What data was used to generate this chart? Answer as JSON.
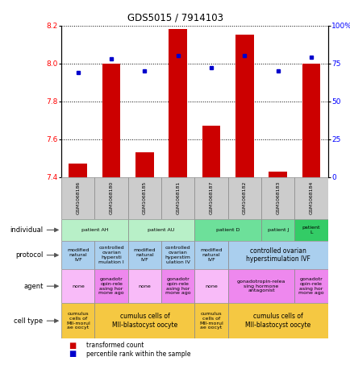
{
  "title": "GDS5015 / 7914103",
  "samples": [
    "GSM1068186",
    "GSM1068180",
    "GSM1068185",
    "GSM1068181",
    "GSM1068187",
    "GSM1068182",
    "GSM1068183",
    "GSM1068184"
  ],
  "bar_values": [
    7.47,
    8.0,
    7.53,
    8.18,
    7.67,
    8.15,
    7.43,
    8.0
  ],
  "dot_values": [
    69,
    78,
    70,
    80,
    72,
    80,
    70,
    79
  ],
  "ylim_left": [
    7.4,
    8.2
  ],
  "ylim_right": [
    0,
    100
  ],
  "yticks_left": [
    7.4,
    7.6,
    7.8,
    8.0,
    8.2
  ],
  "yticks_right": [
    0,
    25,
    50,
    75,
    100
  ],
  "ytick_labels_right": [
    "0",
    "25",
    "50",
    "75",
    "100%"
  ],
  "bar_color": "#cc0000",
  "dot_color": "#0000cc",
  "sample_box_color": "#cccccc",
  "individual_row": {
    "label": "individual",
    "groups": [
      {
        "text": "patient AH",
        "span": [
          0,
          2
        ],
        "color": "#b8f0c8"
      },
      {
        "text": "patient AU",
        "span": [
          2,
          4
        ],
        "color": "#b8f0c8"
      },
      {
        "text": "patient D",
        "span": [
          4,
          6
        ],
        "color": "#6de09a"
      },
      {
        "text": "patient J",
        "span": [
          6,
          7
        ],
        "color": "#6de09a"
      },
      {
        "text": "patient\nL",
        "span": [
          7,
          8
        ],
        "color": "#33cc66"
      }
    ]
  },
  "protocol_row": {
    "label": "protocol",
    "groups": [
      {
        "text": "modified\nnatural\nIVF",
        "span": [
          0,
          1
        ],
        "color": "#aacfee"
      },
      {
        "text": "controlled\novarian\nhypersti\nmulation I",
        "span": [
          1,
          2
        ],
        "color": "#aacfee"
      },
      {
        "text": "modified\nnatural\nIVF",
        "span": [
          2,
          3
        ],
        "color": "#aacfee"
      },
      {
        "text": "controlled\novarian\nhyperstim\nulation IV",
        "span": [
          3,
          4
        ],
        "color": "#aacfee"
      },
      {
        "text": "modified\nnatural\nIVF",
        "span": [
          4,
          5
        ],
        "color": "#aacfee"
      },
      {
        "text": "controlled ovarian\nhyperstimulation IVF",
        "span": [
          5,
          8
        ],
        "color": "#aacfee"
      }
    ]
  },
  "agent_row": {
    "label": "agent",
    "groups": [
      {
        "text": "none",
        "span": [
          0,
          1
        ],
        "color": "#f8bbf8"
      },
      {
        "text": "gonadotr\nopin-rele\nasing hor\nmone ago",
        "span": [
          1,
          2
        ],
        "color": "#ee88ee"
      },
      {
        "text": "none",
        "span": [
          2,
          3
        ],
        "color": "#f8bbf8"
      },
      {
        "text": "gonadotr\nopin-rele\nasing hor\nmone ago",
        "span": [
          3,
          4
        ],
        "color": "#ee88ee"
      },
      {
        "text": "none",
        "span": [
          4,
          5
        ],
        "color": "#f8bbf8"
      },
      {
        "text": "gonadotropin-relea\nsing hormone\nantagonist",
        "span": [
          5,
          7
        ],
        "color": "#ee88ee"
      },
      {
        "text": "gonadotr\nopin-rele\nasing hor\nmone ago",
        "span": [
          7,
          8
        ],
        "color": "#ee88ee"
      }
    ]
  },
  "celltype_row": {
    "label": "cell type",
    "groups": [
      {
        "text": "cumulus\ncells of\nMII-morul\nae oocyt",
        "span": [
          0,
          1
        ],
        "color": "#f5c842"
      },
      {
        "text": "cumulus cells of\nMII-blastocyst oocyte",
        "span": [
          1,
          4
        ],
        "color": "#f5c842"
      },
      {
        "text": "cumulus\ncells of\nMII-morul\nae oocyt",
        "span": [
          4,
          5
        ],
        "color": "#f5c842"
      },
      {
        "text": "cumulus cells of\nMII-blastocyst oocyte",
        "span": [
          5,
          8
        ],
        "color": "#f5c842"
      }
    ]
  },
  "left_labels": [
    "individual",
    "protocol",
    "agent",
    "cell type"
  ],
  "legend_bar_label": "transformed count",
  "legend_dot_label": "percentile rank within the sample"
}
